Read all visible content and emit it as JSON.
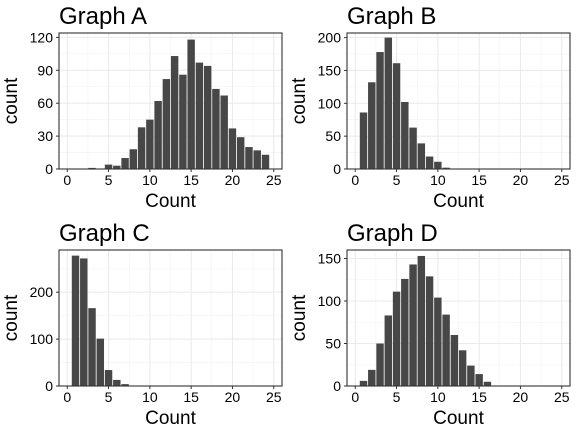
{
  "chart_data": [
    {
      "type": "bar",
      "title": "Graph A",
      "xlabel": "Count",
      "ylabel": "count",
      "xlim": [
        -1,
        26
      ],
      "ylim": [
        0,
        124
      ],
      "xticks": [
        0,
        5,
        10,
        15,
        20,
        25
      ],
      "yticks": [
        0,
        30,
        60,
        90,
        120
      ],
      "x": [
        3,
        5,
        6,
        7,
        8,
        9,
        10,
        11,
        12,
        13,
        14,
        15,
        16,
        17,
        18,
        19,
        20,
        21,
        22,
        23,
        24
      ],
      "values": [
        1,
        4,
        3,
        10,
        18,
        38,
        45,
        62,
        82,
        103,
        86,
        118,
        97,
        94,
        73,
        67,
        37,
        29,
        20,
        17,
        13
      ],
      "grid": true,
      "bar_color": "#474747"
    },
    {
      "type": "bar",
      "title": "Graph B",
      "xlabel": "Count",
      "ylabel": "count",
      "xlim": [
        -1,
        26
      ],
      "ylim": [
        0,
        207
      ],
      "xticks": [
        0,
        5,
        10,
        15,
        20,
        25
      ],
      "yticks": [
        0,
        50,
        100,
        150,
        200
      ],
      "x": [
        1,
        2,
        3,
        4,
        5,
        6,
        7,
        8,
        9,
        10,
        11
      ],
      "values": [
        86,
        132,
        178,
        200,
        161,
        102,
        63,
        39,
        19,
        11,
        2
      ],
      "grid": true,
      "bar_color": "#474747"
    },
    {
      "type": "bar",
      "title": "Graph C",
      "xlabel": "Count",
      "ylabel": "count",
      "xlim": [
        -1,
        26
      ],
      "ylim": [
        0,
        290
      ],
      "xticks": [
        0,
        5,
        10,
        15,
        20,
        25
      ],
      "yticks": [
        0,
        100,
        200
      ],
      "x": [
        1,
        2,
        3,
        4,
        5,
        6,
        7,
        8
      ],
      "values": [
        278,
        272,
        166,
        101,
        34,
        13,
        4,
        1
      ],
      "grid": true,
      "bar_color": "#474747"
    },
    {
      "type": "bar",
      "title": "Graph D",
      "xlabel": "Count",
      "ylabel": "count",
      "xlim": [
        -1,
        26
      ],
      "ylim": [
        0,
        160
      ],
      "xticks": [
        0,
        5,
        10,
        15,
        20,
        25
      ],
      "yticks": [
        0,
        50,
        100,
        150
      ],
      "x": [
        1,
        2,
        3,
        4,
        5,
        6,
        7,
        8,
        9,
        10,
        11,
        12,
        13,
        14,
        15,
        16
      ],
      "values": [
        6,
        19,
        50,
        83,
        111,
        126,
        143,
        153,
        129,
        104,
        84,
        60,
        42,
        24,
        14,
        5
      ],
      "grid": true,
      "bar_color": "#474747"
    }
  ]
}
